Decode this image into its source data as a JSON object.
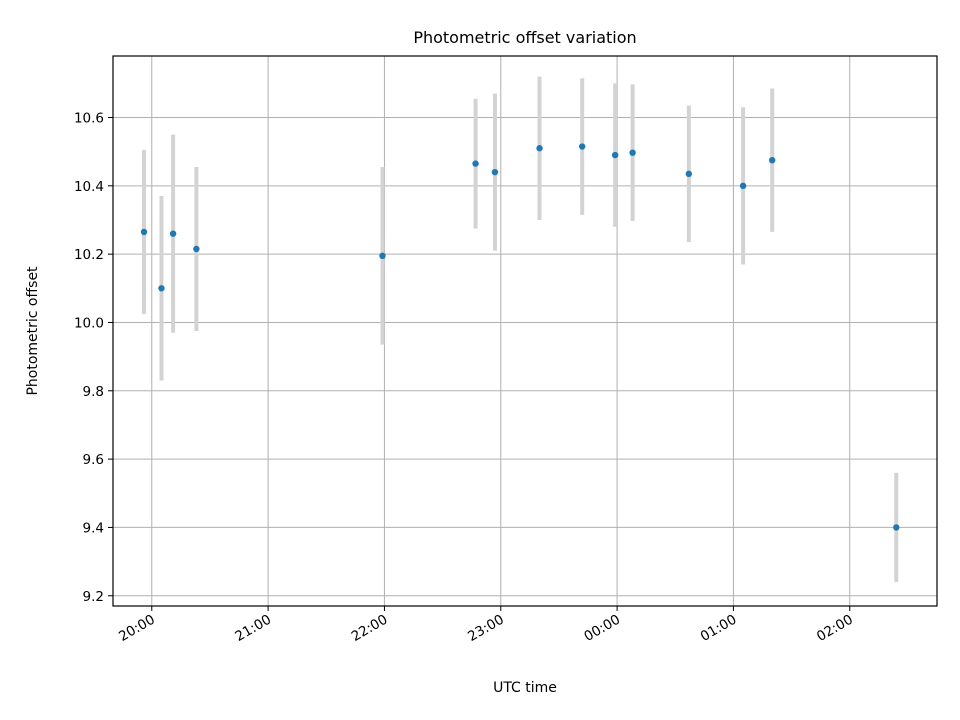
{
  "chart_data": {
    "type": "scatter",
    "title": "Photometric offset variation",
    "xlabel": "UTC time",
    "ylabel": "Photometric offset",
    "x_is_time": true,
    "xlim": [
      "19:40",
      "02:45"
    ],
    "ylim": [
      9.17,
      10.78
    ],
    "grid": true,
    "x_ticks": [
      "20:00",
      "21:00",
      "22:00",
      "23:00",
      "00:00",
      "01:00",
      "02:00"
    ],
    "y_ticks": [
      "9.2",
      "9.4",
      "9.6",
      "9.8",
      "10.0",
      "10.2",
      "10.4",
      "10.6"
    ],
    "series": [
      {
        "marker_color": "#1f77b4",
        "errorbar_color": "#d3d3d3",
        "points": [
          {
            "x": "19:56",
            "y": 10.265,
            "err": 0.24
          },
          {
            "x": "20:05",
            "y": 10.1,
            "err": 0.27
          },
          {
            "x": "20:11",
            "y": 10.26,
            "err": 0.29
          },
          {
            "x": "20:23",
            "y": 10.215,
            "err": 0.24
          },
          {
            "x": "21:59",
            "y": 10.195,
            "err": 0.26
          },
          {
            "x": "22:47",
            "y": 10.465,
            "err": 0.19
          },
          {
            "x": "22:57",
            "y": 10.44,
            "err": 0.23
          },
          {
            "x": "23:20",
            "y": 10.51,
            "err": 0.21
          },
          {
            "x": "23:42",
            "y": 10.515,
            "err": 0.2
          },
          {
            "x": "23:59",
            "y": 10.49,
            "err": 0.21
          },
          {
            "x": "00:08",
            "y": 10.497,
            "err": 0.2
          },
          {
            "x": "00:37",
            "y": 10.435,
            "err": 0.2
          },
          {
            "x": "01:05",
            "y": 10.4,
            "err": 0.23
          },
          {
            "x": "01:20",
            "y": 10.475,
            "err": 0.21
          },
          {
            "x": "02:24",
            "y": 9.4,
            "err": 0.16
          }
        ]
      }
    ]
  }
}
